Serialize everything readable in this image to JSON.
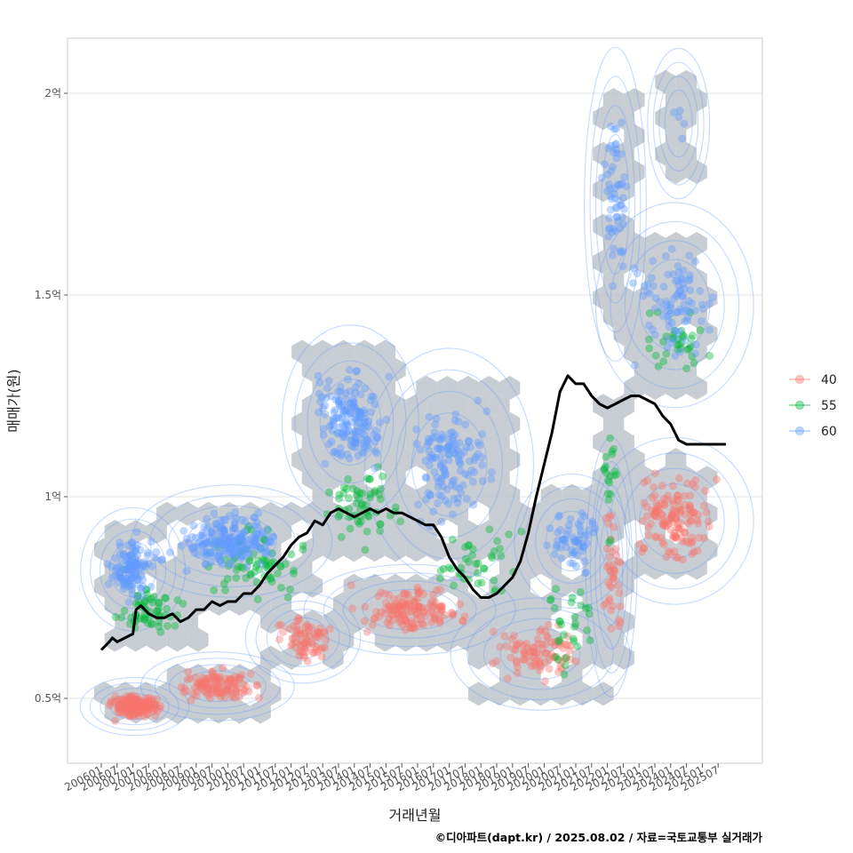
{
  "chart_data": {
    "type": "scatter",
    "xlabel": "거래년월",
    "ylabel": "매매가(원)",
    "caption": "©디아파트(dapt.kr) / 2025.08.02 / 자료=국토교통부 실거래가",
    "ylim": [
      0.35,
      2.15
    ],
    "y_ticks": [
      {
        "value": 0.5,
        "label": "0.5억"
      },
      {
        "value": 1.0,
        "label": "1억"
      },
      {
        "value": 1.5,
        "label": "1.5억"
      },
      {
        "value": 2.0,
        "label": "2억"
      }
    ],
    "x_ticks": [
      "200601",
      "200607",
      "200701",
      "200707",
      "200801",
      "200807",
      "200901",
      "200907",
      "201001",
      "201007",
      "201101",
      "201107",
      "201201",
      "201207",
      "201301",
      "201307",
      "201401",
      "201407",
      "201501",
      "201507",
      "201601",
      "201607",
      "201701",
      "201707",
      "201801",
      "201807",
      "201901",
      "201907",
      "202001",
      "202007",
      "202101",
      "202107",
      "202201",
      "202207",
      "202301",
      "202307",
      "202401",
      "202407",
      "202501",
      "202507"
    ],
    "legend": {
      "position": "right",
      "entries": [
        {
          "name": "40",
          "color": "#F8766D"
        },
        {
          "name": "55",
          "color": "#00BA38"
        },
        {
          "name": "60",
          "color": "#619CFF"
        }
      ]
    },
    "series": [
      {
        "name": "40",
        "color": "#F8766D",
        "clusters": [
          {
            "x_range": [
              0.0,
              4.2
            ],
            "y_range": [
              0.44,
              0.52
            ],
            "n": 160
          },
          {
            "x_range": [
              4.2,
              10.5
            ],
            "y_range": [
              0.48,
              0.58
            ],
            "n": 110
          },
          {
            "x_range": [
              10.5,
              15.0
            ],
            "y_range": [
              0.58,
              0.72
            ],
            "n": 70
          },
          {
            "x_range": [
              15.0,
              24.0
            ],
            "y_range": [
              0.65,
              0.79
            ],
            "n": 140
          },
          {
            "x_range": [
              24.0,
              31.5
            ],
            "y_range": [
              0.52,
              0.7
            ],
            "n": 90
          },
          {
            "x_range": [
              31.5,
              33.0
            ],
            "y_range": [
              0.6,
              1.05
            ],
            "n": 40
          },
          {
            "x_range": [
              33.0,
              39.5
            ],
            "y_range": [
              0.8,
              1.08
            ],
            "n": 140
          }
        ]
      },
      {
        "name": "55",
        "color": "#00BA38",
        "clusters": [
          {
            "x_range": [
              0.0,
              6.0
            ],
            "y_range": [
              0.65,
              0.78
            ],
            "n": 60
          },
          {
            "x_range": [
              6.0,
              13.5
            ],
            "y_range": [
              0.72,
              0.95
            ],
            "n": 70
          },
          {
            "x_range": [
              13.5,
              20.0
            ],
            "y_range": [
              0.85,
              1.1
            ],
            "n": 60
          },
          {
            "x_range": [
              20.0,
              27.5
            ],
            "y_range": [
              0.7,
              0.95
            ],
            "n": 40
          },
          {
            "x_range": [
              27.5,
              31.5
            ],
            "y_range": [
              0.55,
              0.85
            ],
            "n": 30
          },
          {
            "x_range": [
              31.5,
              33.0
            ],
            "y_range": [
              0.85,
              1.25
            ],
            "n": 20
          },
          {
            "x_range": [
              33.0,
              39.5
            ],
            "y_range": [
              1.28,
              1.5
            ],
            "n": 35
          }
        ]
      },
      {
        "name": "60",
        "color": "#619CFF",
        "clusters": [
          {
            "x_range": [
              0.0,
              4.0
            ],
            "y_range": [
              0.72,
              0.92
            ],
            "n": 120
          },
          {
            "x_range": [
              4.0,
              12.5
            ],
            "y_range": [
              0.8,
              0.98
            ],
            "n": 200
          },
          {
            "x_range": [
              13.0,
              18.5
            ],
            "y_range": [
              1.02,
              1.35
            ],
            "n": 160
          },
          {
            "x_range": [
              18.5,
              25.5
            ],
            "y_range": [
              0.88,
              1.28
            ],
            "n": 130
          },
          {
            "x_range": [
              27.5,
              32.0
            ],
            "y_range": [
              0.78,
              1.0
            ],
            "n": 60
          },
          {
            "x_range": [
              31.5,
              33.5
            ],
            "y_range": [
              1.45,
              2.0
            ],
            "n": 60
          },
          {
            "x_range": [
              33.0,
              39.5
            ],
            "y_range": [
              1.3,
              1.65
            ],
            "n": 90
          },
          {
            "x_range": [
              35.5,
              37.5
            ],
            "y_range": [
              1.8,
              2.05
            ],
            "n": 5
          }
        ]
      }
    ],
    "trend_line": {
      "name": "median",
      "color": "#000000",
      "x": [
        0.0,
        0.5,
        0.7,
        1.0,
        1.5,
        2.0,
        2.2,
        2.5,
        3.0,
        3.5,
        4.0,
        4.5,
        5.0,
        5.5,
        6.0,
        6.5,
        7.0,
        7.5,
        8.0,
        8.5,
        9.0,
        9.5,
        10.0,
        10.5,
        11.0,
        11.5,
        12.0,
        12.5,
        13.0,
        13.5,
        14.0,
        14.5,
        15.0,
        15.5,
        16.0,
        16.5,
        17.0,
        17.5,
        18.0,
        18.5,
        19.0,
        19.5,
        20.0,
        20.5,
        21.0,
        21.5,
        22.0,
        22.5,
        23.0,
        23.5,
        24.0,
        24.5,
        25.0,
        25.5,
        26.0,
        26.5,
        27.0,
        27.5,
        28.0,
        28.5,
        29.0,
        29.5,
        30.0,
        30.5,
        31.0,
        31.5,
        32.0,
        32.5,
        33.0,
        33.5,
        34.0,
        34.5,
        35.0,
        35.5,
        36.0,
        36.5,
        37.0,
        37.5,
        38.0,
        38.5,
        39.0,
        39.5
      ],
      "y": [
        0.62,
        0.64,
        0.65,
        0.64,
        0.65,
        0.66,
        0.72,
        0.73,
        0.71,
        0.7,
        0.7,
        0.71,
        0.69,
        0.7,
        0.72,
        0.72,
        0.74,
        0.73,
        0.74,
        0.74,
        0.76,
        0.76,
        0.78,
        0.81,
        0.83,
        0.85,
        0.88,
        0.9,
        0.91,
        0.94,
        0.93,
        0.96,
        0.97,
        0.96,
        0.95,
        0.96,
        0.97,
        0.96,
        0.97,
        0.96,
        0.96,
        0.95,
        0.94,
        0.93,
        0.93,
        0.9,
        0.85,
        0.82,
        0.8,
        0.77,
        0.75,
        0.75,
        0.76,
        0.78,
        0.8,
        0.84,
        0.91,
        1.0,
        1.08,
        1.16,
        1.26,
        1.3,
        1.28,
        1.28,
        1.25,
        1.23,
        1.22,
        1.23,
        1.24,
        1.25,
        1.25,
        1.24,
        1.23,
        1.2,
        1.18,
        1.14,
        1.13,
        1.13,
        1.13,
        1.13,
        1.13,
        1.13
      ]
    },
    "density_contours": {
      "color": "#619CFF",
      "levels": 10
    },
    "hexbin": {
      "fill": "#BEC4CB"
    }
  }
}
